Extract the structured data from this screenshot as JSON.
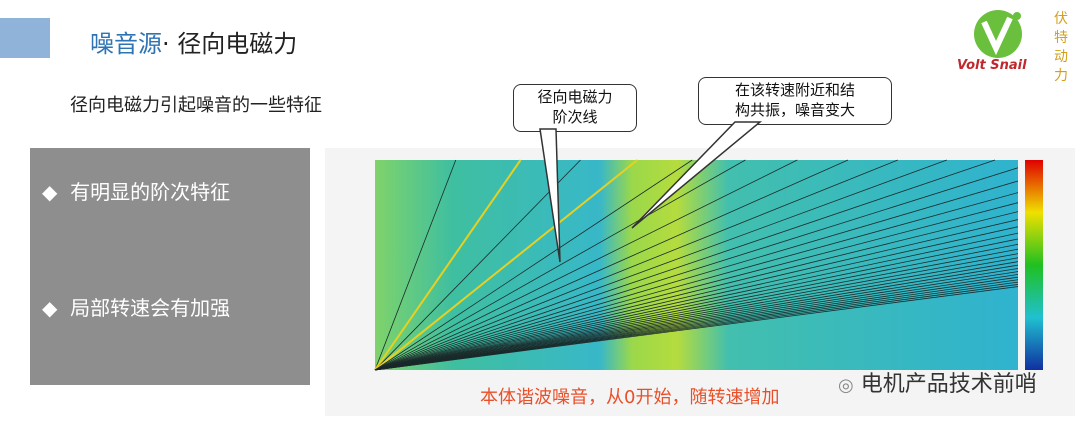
{
  "header": {
    "title_main": "噪音源",
    "title_sub": "· 径向电磁力"
  },
  "logo": {
    "brand": "Volt Snail",
    "vertical_text": [
      "伏",
      "特",
      "动",
      "力"
    ]
  },
  "subtitle": "径向电磁力引起噪音的一些特征",
  "bullets": [
    "有明显的阶次特征",
    "局部转速会有加强"
  ],
  "callouts": [
    {
      "lines": [
        "径向电磁力",
        "阶次线"
      ]
    },
    {
      "lines": [
        "在该转速附近和结",
        "构共振，噪音变大"
      ]
    }
  ],
  "caption": "本体谐波噪音，从0开始，随转速增加",
  "watermark": "电机产品技术前哨"
}
